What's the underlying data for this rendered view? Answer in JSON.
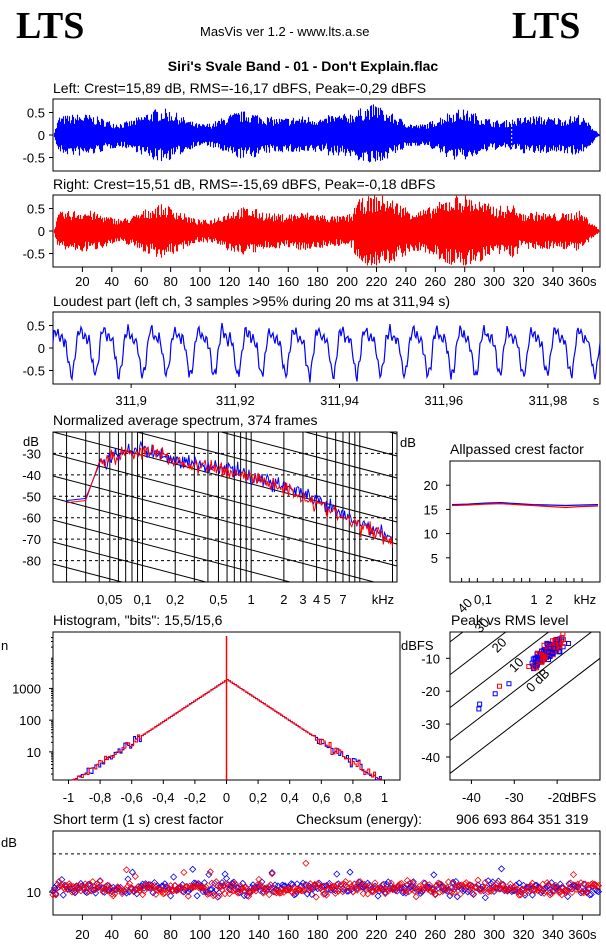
{
  "header": {
    "logo_left": "LTS",
    "logo_right": "LTS",
    "app_title": "MasVis ver 1.2 - www.lts.a.se",
    "file_title": "Siri's Svale Band - 01 - Don't Explain.flac"
  },
  "colors": {
    "left": "#0000ff",
    "right": "#ff0000"
  },
  "chart_data": [
    {
      "type": "area",
      "title": "Left: Crest=15,89 dB, RMS=-16,17 dBFS, Peak=-0,29 dBFS",
      "ylim": [
        -0.8,
        0.8
      ],
      "yticks": [
        "0.5",
        "0",
        "-0.5"
      ],
      "crest_db": 15.89,
      "rms_dbfs": -16.17,
      "peak_dbfs": -0.29,
      "marker_time_s": 311.94,
      "duration_s": 372
    },
    {
      "type": "area",
      "title": "Right: Crest=15,51 dB, RMS=-15,69 dBFS, Peak=-0,18 dBFS",
      "ylim": [
        -0.8,
        0.8
      ],
      "yticks": [
        "0.5",
        "0",
        "-0.5"
      ],
      "xticks": [
        "20",
        "40",
        "60",
        "80",
        "100",
        "120",
        "140",
        "160",
        "180",
        "200",
        "220",
        "240",
        "260",
        "280",
        "300",
        "320",
        "340",
        "360s"
      ],
      "crest_db": 15.51,
      "rms_dbfs": -15.69,
      "peak_dbfs": -0.18,
      "duration_s": 372
    },
    {
      "type": "line",
      "title": "Loudest part (left  ch, 3 samples >95% during 20 ms at 311,94 s)",
      "ylim": [
        -0.8,
        0.8
      ],
      "yticks": [
        "0.5",
        "0",
        "-0.5"
      ],
      "xticks": [
        "311,9",
        "311,92",
        "311,94",
        "311,96",
        "311,98",
        "s"
      ],
      "xlim": [
        311.885,
        311.99
      ]
    },
    {
      "type": "line",
      "title": "Normalized average spectrum, 374 frames",
      "ylabel": "dB",
      "yticks": [
        "-30",
        "-40",
        "-50",
        "-60",
        "-70",
        "-80"
      ],
      "xticks": [
        "0,05",
        "0,1",
        "0,2",
        "0,5",
        "1",
        "2",
        "3",
        "4",
        "5",
        "7",
        "kHz"
      ],
      "frames": 374,
      "series": [
        {
          "name": "Left",
          "x": [
            0.02,
            0.03,
            0.04,
            0.05,
            0.07,
            0.1,
            0.15,
            0.2,
            0.3,
            0.5,
            0.7,
            1,
            2,
            3,
            5,
            7,
            10,
            15,
            20
          ],
          "y": [
            -52,
            -51,
            -35,
            -33,
            -29,
            -28,
            -31,
            -33,
            -35,
            -36,
            -38,
            -41,
            -45,
            -49,
            -55,
            -59,
            -63,
            -66,
            -70
          ]
        },
        {
          "name": "Right",
          "x": [
            0.02,
            0.03,
            0.04,
            0.05,
            0.07,
            0.1,
            0.15,
            0.2,
            0.3,
            0.5,
            0.7,
            1,
            2,
            3,
            5,
            7,
            10,
            15,
            20
          ],
          "y": [
            -53,
            -52,
            -34,
            -32,
            -30,
            -29,
            -30,
            -34,
            -36,
            -37,
            -39,
            -41,
            -46,
            -50,
            -56,
            -60,
            -64,
            -67,
            -71
          ]
        }
      ]
    },
    {
      "type": "line",
      "title": "Allpassed crest factor",
      "ylabel": "dB",
      "yticks": [
        "20",
        "15",
        "10",
        "5"
      ],
      "xticks": [
        "0,1",
        "1",
        "2",
        "kHz"
      ],
      "ylim": [
        0,
        25
      ],
      "series": [
        {
          "name": "Left",
          "y": [
            16.0,
            16.1,
            16.3,
            16.4,
            16.2,
            16.0,
            15.9,
            15.8,
            15.9,
            16.0
          ]
        },
        {
          "name": "Right",
          "y": [
            15.8,
            15.9,
            16.1,
            16.2,
            16.0,
            15.8,
            15.6,
            15.4,
            15.6,
            15.7
          ]
        }
      ]
    },
    {
      "type": "line",
      "title": "Histogram, \"bits\": 15,5/15,6",
      "ylabel": "n",
      "yticks": [
        "1000",
        "100",
        "10"
      ],
      "xticks": [
        "-1",
        "-0,8",
        "-0,6",
        "-0,4",
        "-0,2",
        "0",
        "0,2",
        "0,4",
        "0,6",
        "0,8",
        "1"
      ],
      "bits_left": 15.5,
      "bits_right": 15.6
    },
    {
      "type": "scatter",
      "title": "Peak vs RMS level",
      "ylabel": "dBFS",
      "xlabel": "dBFS",
      "yticks": [
        "-10",
        "-20",
        "-30",
        "-40"
      ],
      "xticks": [
        "-40",
        "-30",
        "-20"
      ],
      "diagonal_labels": [
        "40",
        "30",
        "20",
        "10",
        "0 dB"
      ],
      "xlim": [
        -45,
        -10
      ],
      "ylim": [
        -47,
        -2
      ]
    },
    {
      "type": "scatter",
      "title": "Short term (1 s) crest factor",
      "ylabel": "dB",
      "yticks": [
        "10"
      ],
      "xticks": [
        "20",
        "40",
        "60",
        "80",
        "100",
        "120",
        "140",
        "160",
        "180",
        "200",
        "220",
        "240",
        "260",
        "280",
        "300",
        "320",
        "340",
        "360s"
      ],
      "checksum_label": "Checksum (energy):",
      "checksum_value": "906 693 864 351 319",
      "mean_db": 10
    }
  ]
}
